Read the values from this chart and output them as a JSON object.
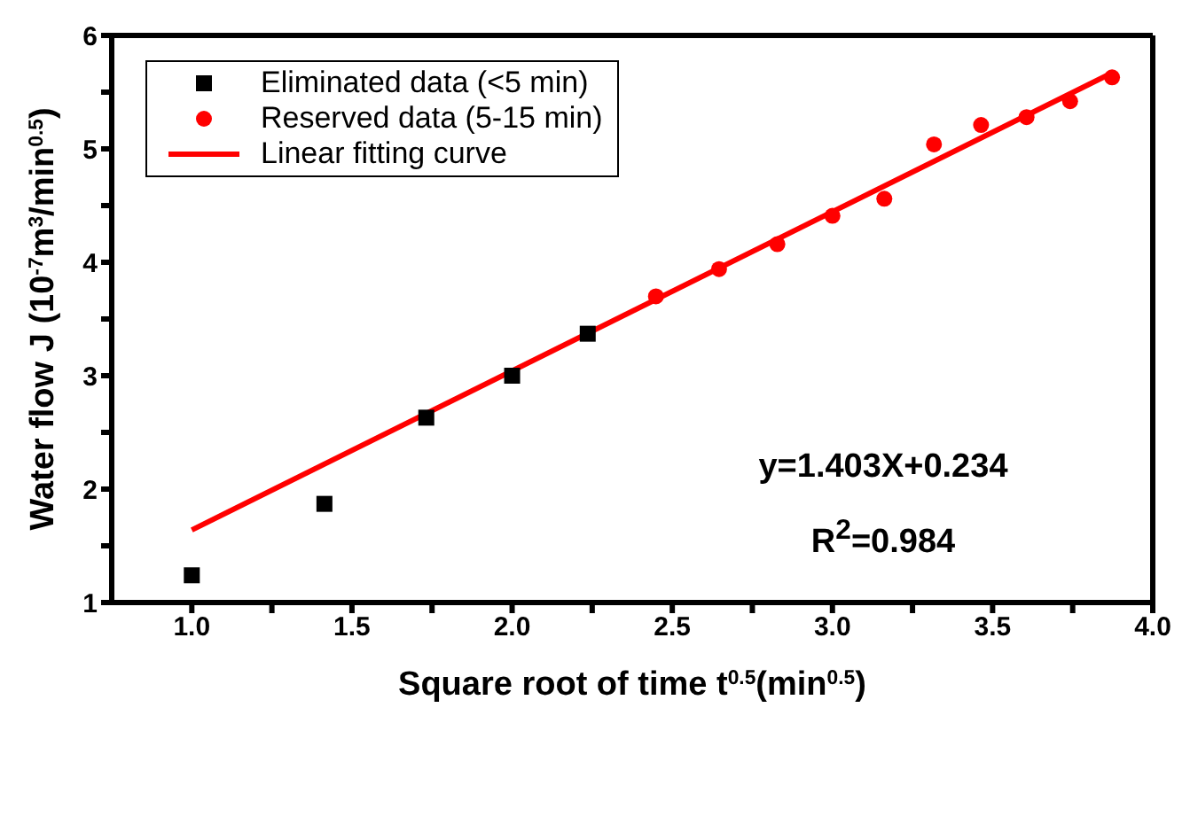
{
  "chart_data": {
    "type": "scatter",
    "xlabel": "Square root of time t$^{0.5}$(min$^{0.5}$)",
    "ylabel": "Water flow J (10$^{-7}$m$^{3}$/min$^{0.5}$)",
    "xlim": [
      0.75,
      4.0
    ],
    "ylim": [
      1,
      6
    ],
    "xticks": [
      {
        "value": 1,
        "label": "1.0"
      },
      {
        "value": 1.25,
        "label": null
      },
      {
        "value": 1.5,
        "label": "1.5"
      },
      {
        "value": 1.75,
        "label": null
      },
      {
        "value": 2,
        "label": "2.0"
      },
      {
        "value": 2.25,
        "label": null
      },
      {
        "value": 2.5,
        "label": "2.5"
      },
      {
        "value": 2.75,
        "label": null
      },
      {
        "value": 3,
        "label": "3.0"
      },
      {
        "value": 3.25,
        "label": null
      },
      {
        "value": 3.5,
        "label": "3.5"
      },
      {
        "value": 3.75,
        "label": null
      },
      {
        "value": 4,
        "label": "4.0"
      }
    ],
    "yticks": [
      1,
      {
        "value": 1.5,
        "label": null
      },
      2,
      {
        "value": 2.5,
        "label": null
      },
      3,
      {
        "value": 3.5,
        "label": null
      },
      4,
      {
        "value": 4.5,
        "label": null
      },
      5,
      {
        "value": 5.5,
        "label": null
      },
      6
    ],
    "grid": false,
    "legend": "top left",
    "annotations": [
      "y=1.403X+0.234",
      "R$^{2}$=0.984"
    ],
    "series": [
      {
        "name": "Eliminated data (<5 min)",
        "marker": "square",
        "color": "#000000",
        "x": [
          1.0,
          1.414,
          1.732,
          2.0,
          2.236
        ],
        "values": [
          1.24,
          1.87,
          2.63,
          3.0,
          3.37
        ]
      },
      {
        "name": "Reserved data  (5-15 min)",
        "marker": "circle",
        "color": "#ff0000",
        "x": [
          2.449,
          2.646,
          2.828,
          3.0,
          3.162,
          3.317,
          3.464,
          3.606,
          3.742,
          3.873
        ],
        "values": [
          3.7,
          3.94,
          4.16,
          4.41,
          4.56,
          5.04,
          5.21,
          5.28,
          5.42,
          5.63
        ]
      },
      {
        "name": "Linear fitting curve",
        "type": "line",
        "marker": "none",
        "color": "#ff0000",
        "x": [
          1.0,
          3.873
        ],
        "values": [
          1.64,
          5.67
        ]
      }
    ]
  }
}
